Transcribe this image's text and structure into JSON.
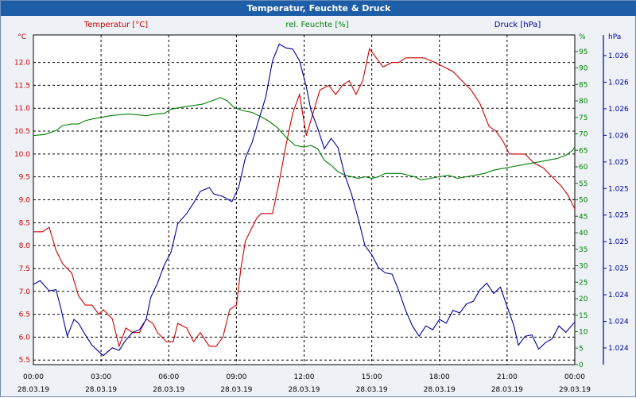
{
  "window": {
    "title": "Temperatur, Feuchte & Druck"
  },
  "colors": {
    "temperature": "#cc0000",
    "humidity": "#008000",
    "pressure": "#000099",
    "grid": "#000000",
    "background": "#ffffff",
    "titlebar": "#1d5ea8"
  },
  "chart_data": {
    "type": "line",
    "title": "Temperatur, Feuchte & Druck",
    "grid": true,
    "x_ticks": [
      {
        "time": "00:00",
        "date": "28.03.19"
      },
      {
        "time": "03:00",
        "date": "28.03.19"
      },
      {
        "time": "06:00",
        "date": "28.03.19"
      },
      {
        "time": "09:00",
        "date": "28.03.19"
      },
      {
        "time": "12:00",
        "date": "28.03.19"
      },
      {
        "time": "15:00",
        "date": "28.03.19"
      },
      {
        "time": "18:00",
        "date": "28.03.19"
      },
      {
        "time": "21:00",
        "date": "28.03.19"
      },
      {
        "time": "00:00",
        "date": "29.03.19"
      }
    ],
    "x_range_hours": [
      0,
      24
    ],
    "axes": {
      "temperature": {
        "label": "Temperatur [°C]",
        "unit": "°C",
        "range": [
          5.4,
          12.6
        ],
        "ticks": [
          "5.5",
          "6.0",
          "6.5",
          "7.0",
          "7.5",
          "8.0",
          "8.5",
          "9.0",
          "9.5",
          "10.0",
          "10.5",
          "11.0",
          "11.5",
          "12.0"
        ]
      },
      "humidity": {
        "label": "rel. Feuchte [%]",
        "unit": "%",
        "range": [
          0,
          100
        ],
        "ticks": [
          "0",
          "5",
          "10",
          "15",
          "20",
          "25",
          "30",
          "35",
          "40",
          "45",
          "50",
          "55",
          "60",
          "65",
          "70",
          "75",
          "80",
          "85",
          "90",
          "95"
        ]
      },
      "pressure": {
        "label": "Druck [hPa]",
        "unit": "hPa",
        "range": [
          1023.75,
          1026.3
        ],
        "ticks": [
          "1.024",
          "1.024",
          "1.024",
          "1.025",
          "1.025",
          "1.025",
          "1.025",
          "1.025",
          "1.026",
          "1.026",
          "1.026",
          "1.026"
        ]
      }
    },
    "series": [
      {
        "name": "Temperatur [°C]",
        "axis": "temperature",
        "points": [
          [
            0,
            8.3
          ],
          [
            0.4,
            8.3
          ],
          [
            0.7,
            8.4
          ],
          [
            1.0,
            7.9
          ],
          [
            1.3,
            7.6
          ],
          [
            1.7,
            7.4
          ],
          [
            2.0,
            6.9
          ],
          [
            2.3,
            6.7
          ],
          [
            2.6,
            6.7
          ],
          [
            2.9,
            6.5
          ],
          [
            3.1,
            6.6
          ],
          [
            3.5,
            6.4
          ],
          [
            3.8,
            5.8
          ],
          [
            4.1,
            6.2
          ],
          [
            4.4,
            6.1
          ],
          [
            4.7,
            6.1
          ],
          [
            5.0,
            6.4
          ],
          [
            5.3,
            6.3
          ],
          [
            5.5,
            6.1
          ],
          [
            5.9,
            5.9
          ],
          [
            6.2,
            5.9
          ],
          [
            6.4,
            6.3
          ],
          [
            6.8,
            6.2
          ],
          [
            7.1,
            5.9
          ],
          [
            7.4,
            6.1
          ],
          [
            7.8,
            5.8
          ],
          [
            8.1,
            5.8
          ],
          [
            8.4,
            6.0
          ],
          [
            8.7,
            6.6
          ],
          [
            9.0,
            6.7
          ],
          [
            9.2,
            7.5
          ],
          [
            9.4,
            8.1
          ],
          [
            9.6,
            8.3
          ],
          [
            9.9,
            8.6
          ],
          [
            10.1,
            8.7
          ],
          [
            10.6,
            8.7
          ],
          [
            10.9,
            9.4
          ],
          [
            11.2,
            10.2
          ],
          [
            11.5,
            10.9
          ],
          [
            11.8,
            11.3
          ],
          [
            12.1,
            10.4
          ],
          [
            12.4,
            10.9
          ],
          [
            12.7,
            11.4
          ],
          [
            13.1,
            11.5
          ],
          [
            13.4,
            11.3
          ],
          [
            13.7,
            11.5
          ],
          [
            14.0,
            11.6
          ],
          [
            14.3,
            11.3
          ],
          [
            14.6,
            11.6
          ],
          [
            14.9,
            12.3
          ],
          [
            15.2,
            12.1
          ],
          [
            15.5,
            11.9
          ],
          [
            15.9,
            12.0
          ],
          [
            16.2,
            12.0
          ],
          [
            16.5,
            12.1
          ],
          [
            16.9,
            12.1
          ],
          [
            17.3,
            12.1
          ],
          [
            17.8,
            12.0
          ],
          [
            18.2,
            11.9
          ],
          [
            18.6,
            11.8
          ],
          [
            19.0,
            11.6
          ],
          [
            19.4,
            11.4
          ],
          [
            19.8,
            11.1
          ],
          [
            20.2,
            10.6
          ],
          [
            20.5,
            10.5
          ],
          [
            20.8,
            10.3
          ],
          [
            21.1,
            10.0
          ],
          [
            21.5,
            10.0
          ],
          [
            21.8,
            10.0
          ],
          [
            22.2,
            9.8
          ],
          [
            22.6,
            9.7
          ],
          [
            23.0,
            9.5
          ],
          [
            23.4,
            9.3
          ],
          [
            23.7,
            9.1
          ],
          [
            24.0,
            8.8
          ]
        ]
      },
      {
        "name": "rel. Feuchte [%]",
        "axis": "humidity",
        "points": [
          [
            0,
            69.5
          ],
          [
            0.5,
            69.8
          ],
          [
            1.0,
            71
          ],
          [
            1.3,
            72.5
          ],
          [
            1.7,
            73
          ],
          [
            2.0,
            73
          ],
          [
            2.3,
            74
          ],
          [
            2.6,
            74.5
          ],
          [
            3.0,
            75
          ],
          [
            3.4,
            75.5
          ],
          [
            3.8,
            75.8
          ],
          [
            4.2,
            76
          ],
          [
            4.6,
            75.8
          ],
          [
            5.0,
            75.5
          ],
          [
            5.4,
            76
          ],
          [
            5.8,
            76.2
          ],
          [
            6.1,
            77.5
          ],
          [
            6.5,
            78
          ],
          [
            7.0,
            78.5
          ],
          [
            7.5,
            79
          ],
          [
            7.9,
            80
          ],
          [
            8.3,
            81
          ],
          [
            8.6,
            80
          ],
          [
            8.9,
            78
          ],
          [
            9.3,
            77
          ],
          [
            9.7,
            76.5
          ],
          [
            10.0,
            75.5
          ],
          [
            10.4,
            74
          ],
          [
            10.8,
            72
          ],
          [
            11.2,
            69
          ],
          [
            11.6,
            66.5
          ],
          [
            12.0,
            66
          ],
          [
            12.3,
            66.5
          ],
          [
            12.6,
            65.5
          ],
          [
            12.9,
            62
          ],
          [
            13.2,
            60.5
          ],
          [
            13.5,
            58.5
          ],
          [
            13.8,
            57.5
          ],
          [
            14.1,
            57
          ],
          [
            14.4,
            56.5
          ],
          [
            14.7,
            57
          ],
          [
            15.0,
            56.5
          ],
          [
            15.3,
            57
          ],
          [
            15.6,
            58
          ],
          [
            15.9,
            58
          ],
          [
            16.3,
            58
          ],
          [
            16.6,
            57.5
          ],
          [
            16.9,
            57
          ],
          [
            17.2,
            56
          ],
          [
            17.6,
            56.5
          ],
          [
            18.0,
            57
          ],
          [
            18.4,
            57.5
          ],
          [
            18.8,
            56.5
          ],
          [
            19.2,
            57
          ],
          [
            19.6,
            57.5
          ],
          [
            20.0,
            58
          ],
          [
            20.4,
            59
          ],
          [
            20.8,
            59.5
          ],
          [
            21.2,
            60
          ],
          [
            21.6,
            60.5
          ],
          [
            22.0,
            61
          ],
          [
            22.4,
            61.5
          ],
          [
            22.8,
            62
          ],
          [
            23.2,
            62.5
          ],
          [
            23.6,
            63.5
          ],
          [
            23.9,
            65
          ],
          [
            24.0,
            66
          ]
        ]
      },
      {
        "name": "Druck [hPa]",
        "axis": "pressure",
        "points": [
          [
            0,
            1024.37
          ],
          [
            0.3,
            1024.4
          ],
          [
            0.7,
            1024.32
          ],
          [
            1.0,
            1024.33
          ],
          [
            1.2,
            1024.2
          ],
          [
            1.5,
            1023.97
          ],
          [
            1.8,
            1024.1
          ],
          [
            2.0,
            1024.07
          ],
          [
            2.3,
            1023.98
          ],
          [
            2.6,
            1023.9
          ],
          [
            2.9,
            1023.85
          ],
          [
            3.1,
            1023.82
          ],
          [
            3.5,
            1023.88
          ],
          [
            3.8,
            1023.86
          ],
          [
            4.1,
            1023.94
          ],
          [
            4.4,
            1024.0
          ],
          [
            4.7,
            1024.02
          ],
          [
            5.0,
            1024.1
          ],
          [
            5.2,
            1024.27
          ],
          [
            5.5,
            1024.38
          ],
          [
            5.8,
            1024.52
          ],
          [
            6.1,
            1024.62
          ],
          [
            6.4,
            1024.84
          ],
          [
            6.8,
            1024.92
          ],
          [
            7.1,
            1025.0
          ],
          [
            7.4,
            1025.09
          ],
          [
            7.8,
            1025.12
          ],
          [
            8.0,
            1025.07
          ],
          [
            8.4,
            1025.05
          ],
          [
            8.8,
            1025.01
          ],
          [
            9.1,
            1025.12
          ],
          [
            9.4,
            1025.35
          ],
          [
            9.7,
            1025.47
          ],
          [
            10.0,
            1025.65
          ],
          [
            10.3,
            1025.82
          ],
          [
            10.6,
            1026.1
          ],
          [
            10.9,
            1026.23
          ],
          [
            11.2,
            1026.2
          ],
          [
            11.5,
            1026.19
          ],
          [
            11.8,
            1026.1
          ],
          [
            12.1,
            1025.9
          ],
          [
            12.3,
            1025.72
          ],
          [
            12.6,
            1025.58
          ],
          [
            12.9,
            1025.42
          ],
          [
            13.2,
            1025.5
          ],
          [
            13.5,
            1025.43
          ],
          [
            13.8,
            1025.22
          ],
          [
            14.1,
            1025.07
          ],
          [
            14.4,
            1024.88
          ],
          [
            14.7,
            1024.67
          ],
          [
            15.0,
            1024.6
          ],
          [
            15.3,
            1024.5
          ],
          [
            15.6,
            1024.46
          ],
          [
            15.9,
            1024.45
          ],
          [
            16.2,
            1024.32
          ],
          [
            16.5,
            1024.17
          ],
          [
            16.8,
            1024.05
          ],
          [
            17.1,
            1023.97
          ],
          [
            17.4,
            1024.05
          ],
          [
            17.7,
            1024.02
          ],
          [
            18.0,
            1024.1
          ],
          [
            18.3,
            1024.07
          ],
          [
            18.6,
            1024.17
          ],
          [
            18.9,
            1024.15
          ],
          [
            19.2,
            1024.22
          ],
          [
            19.5,
            1024.24
          ],
          [
            19.8,
            1024.33
          ],
          [
            20.1,
            1024.38
          ],
          [
            20.4,
            1024.3
          ],
          [
            20.7,
            1024.35
          ],
          [
            21.0,
            1024.2
          ],
          [
            21.3,
            1024.05
          ],
          [
            21.5,
            1023.9
          ],
          [
            21.8,
            1023.97
          ],
          [
            22.1,
            1023.98
          ],
          [
            22.4,
            1023.87
          ],
          [
            22.7,
            1023.92
          ],
          [
            23.0,
            1023.95
          ],
          [
            23.3,
            1024.05
          ],
          [
            23.6,
            1024.0
          ],
          [
            24.0,
            1024.08
          ]
        ]
      }
    ]
  }
}
